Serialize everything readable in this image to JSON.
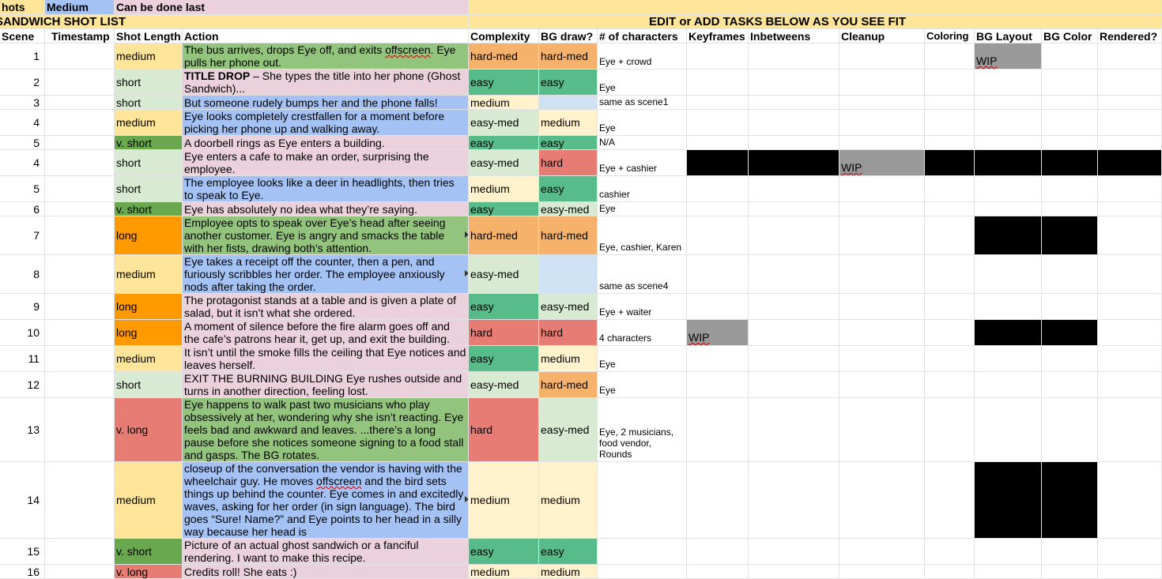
{
  "legend": {
    "col0": "hots",
    "col1": "Medium",
    "col2": "Can be done last"
  },
  "sheet_title": "SANDWICH SHOT LIST",
  "tasks_header": "EDIT or ADD TASKS BELOW AS YOU SEE FIT",
  "headers": {
    "scene": "Scene",
    "timestamp": "Timestamp",
    "shot_length": "Shot Length",
    "action": "Action",
    "complexity": "Complexity",
    "bg_draw": "BG draw?",
    "characters": "# of characters",
    "keyframes": "Keyframes",
    "inbetweens": "Inbetweens",
    "cleanup": "Cleanup",
    "coloring": "Coloring",
    "bg_layout": "BG Layout",
    "bg_color": "BG Color",
    "rendered": "Rendered?"
  },
  "colors": {
    "grid": "#e2e2e2",
    "legend_blue": "#a4c2f4",
    "legend_pink": "#ead1dc",
    "header_yellow": "#ffe599",
    "wip_gray": "#999999",
    "black": "#000000",
    "green_light": "#d9ead3",
    "green_mid": "#93c47d",
    "green_dark": "#6aa84f",
    "green_easy": "#57bb8a",
    "yellow": "#ffe599",
    "yellow_light": "#fff2cc",
    "orange": "#ff9900",
    "orange_light": "#f6b26b",
    "red": "#e67c73",
    "blue_light": "#cfe2f3",
    "blue_mid": "#a4c2f4"
  },
  "rows": [
    {
      "scene": "1",
      "length": "medium",
      "action_html": "The bus arrives, drops Eye off, and exits <span class=\"wavy\">offscreen</span>. Eye pulls her phone out.",
      "complexity": "hard-med",
      "bg": "hard-med",
      "chars": "Eye + crowd",
      "bglayout": "WIP"
    },
    {
      "scene": "2",
      "length": "short",
      "action_html": "<b>TITLE DROP</b> – She types the title into her phone (Ghost Sandwich)...",
      "complexity": "easy",
      "bg": "easy",
      "chars": "Eye"
    },
    {
      "scene": "3",
      "length": "short",
      "action_html": "But someone rudely bumps her and the phone falls!",
      "complexity": "medium",
      "bg": "",
      "chars": "same as scene1"
    },
    {
      "scene": "4",
      "length": "medium",
      "action_html": "Eye looks completely crestfallen for a moment before picking her phone up and walking away.",
      "complexity": "easy-med",
      "bg": "medium",
      "chars": "Eye"
    },
    {
      "scene": "5",
      "length": "v. short",
      "action_html": "A doorbell rings as Eye enters a building.",
      "complexity": "easy",
      "bg": "easy",
      "chars": "N/A"
    },
    {
      "scene": "4",
      "length": "short",
      "action_html": "Eye enters a cafe to make an order, surprising the employee.",
      "complexity": "easy-med",
      "bg": "hard",
      "chars": "Eye + cashier",
      "cleanup": "WIP"
    },
    {
      "scene": "5",
      "length": "short",
      "action_html": "The employee looks like a deer in headlights, then tries to speak to Eye.",
      "complexity": "medium",
      "bg": "easy",
      "chars": "cashier"
    },
    {
      "scene": "6",
      "length": "v. short",
      "action_html": "Eye has absolutely no idea what they’re saying.",
      "complexity": "easy",
      "bg": "easy-med",
      "chars": "Eye"
    },
    {
      "scene": "7",
      "length": "long",
      "action_html": "Employee opts to speak over Eye’s head after seeing another customer. Eye is angry and smacks the table with her fists, drawing both’s attention.",
      "complexity": "hard-med",
      "bg": "hard-med",
      "chars": "Eye, cashier, Karen"
    },
    {
      "scene": "8",
      "length": "medium",
      "action_html": "Eye takes a receipt off the counter, then a pen, and furiously scribbles her order. The employee anxiously nods after taking the order.",
      "complexity": "easy-med",
      "bg": "",
      "chars": "same as scene4"
    },
    {
      "scene": "9",
      "length": "long",
      "action_html": "The protagonist stands at a table and is given a plate of salad, but it isn’t what she ordered.",
      "complexity": "easy",
      "bg": "easy-med",
      "chars": "Eye + waiter"
    },
    {
      "scene": "10",
      "length": "long",
      "action_html": "A moment of silence before the fire alarm goes off and the cafe’s patrons hear it, get up, and exit the building.",
      "complexity": "hard",
      "bg": "hard",
      "chars": "4 characters",
      "keyframes": "WIP"
    },
    {
      "scene": "11",
      "length": "medium",
      "action_html": " It isn’t until the smoke fills the ceiling that Eye notices and leaves herself.",
      "complexity": "easy",
      "bg": "medium",
      "chars": "Eye"
    },
    {
      "scene": "12",
      "length": "short",
      "action_html": "EXIT THE BURNING BUILDING Eye rushes outside and turns in another direction, feeling lost.",
      "complexity": "easy-med",
      "bg": "hard-med",
      "chars": "Eye"
    },
    {
      "scene": "13",
      "length": "v. long",
      "action_html": "Eye happens to walk past two musicians who play obsessively at her, wondering why she isn’t reacting. Eye feels bad and awkward and leaves. ...there’s a long pause before she notices someone signing to a food stall and gasps. The BG rotates.",
      "complexity": "hard",
      "bg": "easy-med",
      "chars": "Eye, 2 musicians, food vendor, Rounds"
    },
    {
      "scene": "14",
      "length": "medium",
      "action_html": "closeup of the conversation the vendor is having with the wheelchair guy. He moves <span class=\"wavy\">offscreen</span> and the bird sets things up behind the counter. Eye comes in and excitedly waves, asking for her order (in sign language). The bird goes “Sure! Name?” and Eye points to her head in a silly way because her head is",
      "complexity": "medium",
      "bg": "medium",
      "chars": ""
    },
    {
      "scene": "15",
      "length": "v. short",
      "action_html": "Picture of an actual ghost sandwich or a fanciful rendering. I want to make this recipe.",
      "complexity": "easy",
      "bg": "easy",
      "chars": ""
    },
    {
      "scene": "16",
      "length": "v. long",
      "action_html": "Credits roll! She eats :)",
      "complexity": "medium",
      "bg": "medium",
      "chars": ""
    }
  ]
}
